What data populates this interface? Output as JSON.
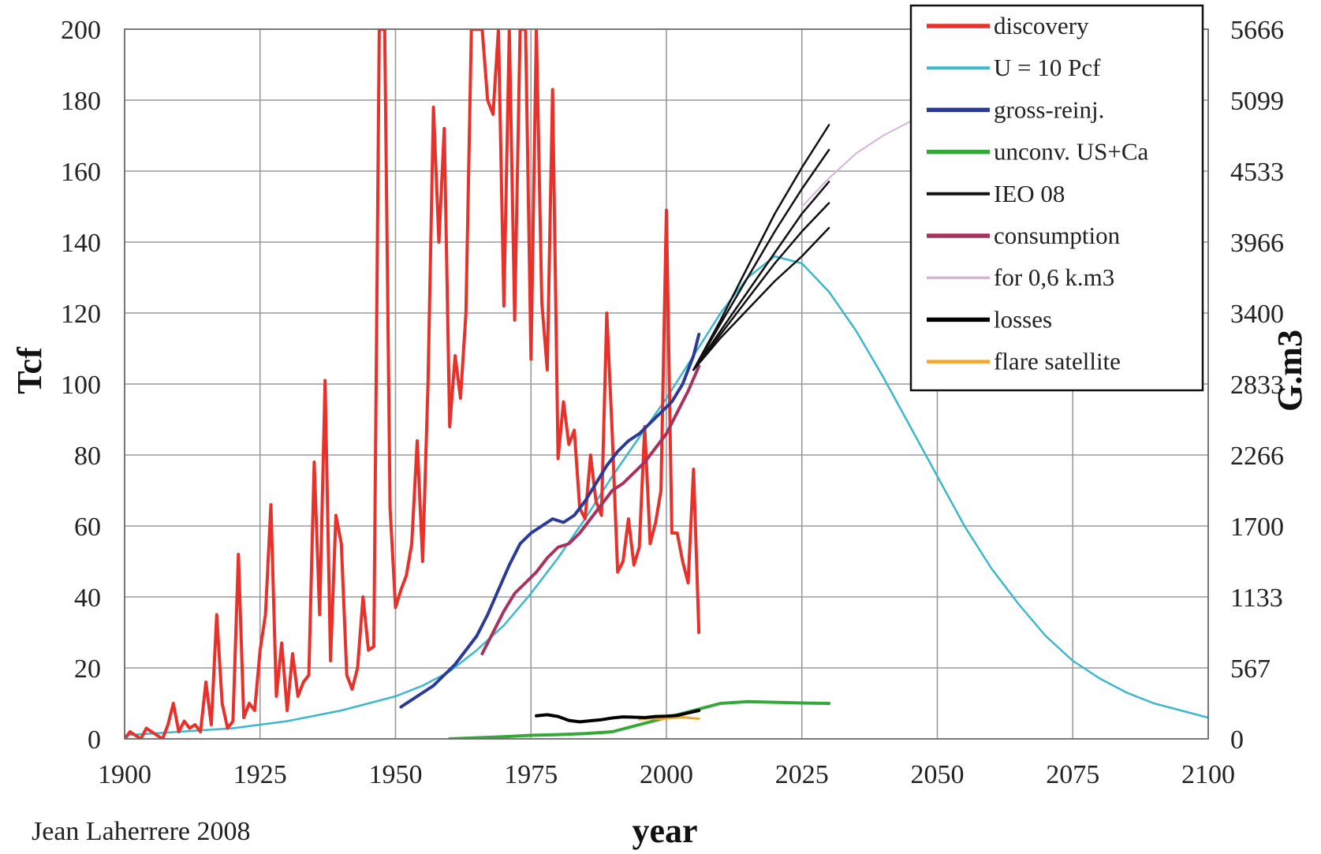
{
  "chart_data": {
    "type": "line",
    "credit": "Jean Laherrere 2008",
    "xlabel": "year",
    "ylabel": "Tcf",
    "ylabel_right": "G.m3",
    "xlim": [
      1900,
      2100
    ],
    "ylim": [
      0,
      200
    ],
    "x_ticks": [
      1900,
      1925,
      1950,
      1975,
      2000,
      2025,
      2050,
      2075,
      2100
    ],
    "y_ticks": [
      0,
      20,
      40,
      60,
      80,
      100,
      120,
      140,
      160,
      180,
      200
    ],
    "y_right_ticks": [
      "0",
      "567",
      "1133",
      "1700",
      "2266",
      "2833",
      "3400",
      "3966",
      "4533",
      "5099",
      "5666"
    ],
    "grid": true,
    "legend_position": "top-right",
    "colors": {
      "discovery": "#e8312a",
      "u10pcf": "#3cb8cc",
      "gross_reinj": "#2b3a9a",
      "unconv": "#35a83a",
      "ieo08": "#111111",
      "consumption": "#a8325e",
      "for06": "#d8b4d8",
      "losses": "#000000",
      "flare": "#f0a830"
    },
    "series": [
      {
        "name": "discovery",
        "key": "discovery",
        "width": 4,
        "x": [
          1900,
          1901,
          1902,
          1903,
          1904,
          1905,
          1906,
          1907,
          1908,
          1909,
          1910,
          1911,
          1912,
          1913,
          1914,
          1915,
          1916,
          1917,
          1918,
          1919,
          1920,
          1921,
          1922,
          1923,
          1924,
          1925,
          1926,
          1927,
          1928,
          1929,
          1930,
          1931,
          1932,
          1933,
          1934,
          1935,
          1936,
          1937,
          1938,
          1939,
          1940,
          1941,
          1942,
          1943,
          1944,
          1945,
          1946,
          1947,
          1948,
          1949,
          1950,
          1951,
          1952,
          1953,
          1954,
          1955,
          1956,
          1957,
          1958,
          1959,
          1960,
          1961,
          1962,
          1963,
          1964,
          1965,
          1966,
          1967,
          1968,
          1969,
          1970,
          1971,
          1972,
          1973,
          1974,
          1975,
          1976,
          1977,
          1978,
          1979,
          1980,
          1981,
          1982,
          1983,
          1984,
          1985,
          1986,
          1987,
          1988,
          1989,
          1990,
          1991,
          1992,
          1993,
          1994,
          1995,
          1996,
          1997,
          1998,
          1999,
          2000,
          2001,
          2002,
          2003,
          2004,
          2005,
          2006
        ],
        "y": [
          0,
          2,
          1,
          0,
          3,
          2,
          1,
          0,
          4,
          10,
          2,
          5,
          3,
          4,
          2,
          16,
          4,
          35,
          10,
          3,
          5,
          52,
          6,
          10,
          8,
          25,
          35,
          66,
          12,
          27,
          8,
          24,
          12,
          16,
          18,
          78,
          35,
          101,
          22,
          63,
          55,
          18,
          14,
          20,
          40,
          25,
          26,
          200,
          200,
          65,
          37,
          42,
          46,
          55,
          84,
          50,
          100,
          178,
          140,
          172,
          88,
          108,
          96,
          120,
          200,
          200,
          200,
          180,
          176,
          200,
          122,
          200,
          118,
          200,
          200,
          107,
          200,
          123,
          104,
          183,
          79,
          95,
          83,
          87,
          65,
          62,
          80,
          67,
          63,
          120,
          86,
          47,
          50,
          62,
          49,
          54,
          88,
          55,
          61,
          70,
          149,
          58,
          58,
          50,
          44,
          76,
          30
        ]
      },
      {
        "name": "U = 10 Pcf",
        "key": "u10pcf",
        "width": 2.5,
        "x": [
          1900,
          1910,
          1920,
          1930,
          1940,
          1950,
          1955,
          1960,
          1965,
          1970,
          1975,
          1980,
          1985,
          1990,
          1995,
          2000,
          2005,
          2010,
          2015,
          2020,
          2025,
          2030,
          2035,
          2040,
          2045,
          2050,
          2055,
          2060,
          2065,
          2070,
          2075,
          2080,
          2085,
          2090,
          2095,
          2100
        ],
        "y": [
          1,
          2,
          3,
          5,
          8,
          12,
          15,
          19,
          25,
          32,
          41,
          51,
          62,
          74,
          85,
          96,
          108,
          120,
          130,
          136,
          134,
          126,
          115,
          102,
          88,
          74,
          60,
          48,
          38,
          29,
          22,
          17,
          13,
          10,
          8,
          6
        ]
      },
      {
        "name": "gross-reinj.",
        "key": "gross_reinj",
        "width": 4,
        "x": [
          1951,
          1953,
          1955,
          1957,
          1959,
          1961,
          1963,
          1965,
          1967,
          1969,
          1971,
          1973,
          1975,
          1977,
          1979,
          1981,
          1983,
          1985,
          1987,
          1989,
          1991,
          1993,
          1995,
          1997,
          1999,
          2001,
          2003,
          2005,
          2006
        ],
        "y": [
          9,
          11,
          13,
          15,
          18,
          21,
          25,
          29,
          35,
          42,
          49,
          55,
          58,
          60,
          62,
          61,
          63,
          67,
          72,
          77,
          81,
          84,
          86,
          89,
          92,
          95,
          100,
          108,
          114
        ]
      },
      {
        "name": "unconv. US+Ca",
        "key": "unconv",
        "width": 4,
        "x": [
          1960,
          1965,
          1970,
          1975,
          1980,
          1985,
          1990,
          1995,
          2000,
          2005,
          2010,
          2015,
          2020,
          2025,
          2030
        ],
        "y": [
          0,
          0.3,
          0.6,
          1,
          1.2,
          1.5,
          2,
          4,
          6,
          8,
          10,
          10.5,
          10.3,
          10.1,
          10
        ]
      },
      {
        "name": "IEO 08",
        "key": "ieo08",
        "width": 2.5,
        "lines": [
          {
            "x": [
              2005,
              2010,
              2015,
              2020,
              2025,
              2030
            ],
            "y": [
              104,
              118,
              133,
              148,
              161,
              173
            ]
          },
          {
            "x": [
              2005,
              2010,
              2015,
              2020,
              2025,
              2030
            ],
            "y": [
              104,
              117,
              130,
              143,
              155,
              166
            ]
          },
          {
            "x": [
              2005,
              2010,
              2015,
              2020,
              2025,
              2030
            ],
            "y": [
              104,
              115,
              126,
              137,
              148,
              157
            ]
          },
          {
            "x": [
              2005,
              2010,
              2015,
              2020,
              2025,
              2030
            ],
            "y": [
              104,
              114,
              124,
              134,
              143,
              151
            ]
          },
          {
            "x": [
              2005,
              2010,
              2015,
              2020,
              2025,
              2030
            ],
            "y": [
              104,
              113,
              121,
              129,
              136,
              144
            ]
          }
        ]
      },
      {
        "name": "consumption",
        "key": "consumption",
        "width": 4,
        "x": [
          1966,
          1968,
          1970,
          1972,
          1974,
          1976,
          1978,
          1980,
          1982,
          1984,
          1986,
          1988,
          1990,
          1992,
          1994,
          1996,
          1998,
          2000,
          2002,
          2004,
          2006
        ],
        "y": [
          24,
          30,
          36,
          41,
          44,
          47,
          51,
          54,
          55,
          58,
          62,
          66,
          70,
          72,
          75,
          78,
          82,
          86,
          92,
          98,
          105
        ]
      },
      {
        "name": "for 0,6 k.m3",
        "key": "for06",
        "width": 2,
        "x": [
          2025,
          2030,
          2035,
          2040,
          2045,
          2050
        ],
        "y": [
          150,
          158,
          165,
          170,
          174,
          177
        ]
      },
      {
        "name": "losses",
        "key": "losses",
        "width": 4,
        "x": [
          1976,
          1978,
          1980,
          1982,
          1984,
          1986,
          1988,
          1990,
          1992,
          1994,
          1996,
          1998,
          2000,
          2002,
          2004,
          2006
        ],
        "y": [
          6.5,
          6.8,
          6.3,
          5.2,
          4.8,
          5.1,
          5.4,
          5.9,
          6.2,
          6.1,
          6,
          6.3,
          6.4,
          6.6,
          7.3,
          8
        ]
      },
      {
        "name": "flare satellite",
        "key": "flare",
        "width": 3,
        "x": [
          1995,
          1997,
          1999,
          2001,
          2003,
          2005,
          2006
        ],
        "y": [
          5.5,
          5.8,
          5.6,
          5.9,
          6.1,
          5.8,
          5.7
        ]
      }
    ]
  }
}
